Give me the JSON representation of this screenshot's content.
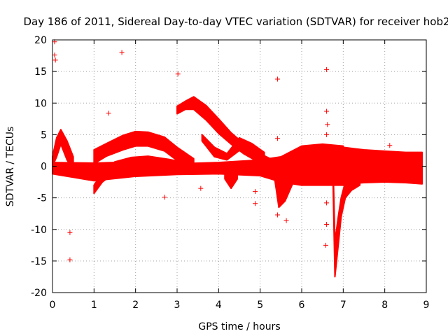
{
  "chart_data": {
    "type": "scatter",
    "title": "Day 186 of 2011, Sidereal Day-to-day VTEC variation (SDTVAR) for receiver hob2",
    "xlabel": "GPS time / hours",
    "ylabel": "SDTVAR / TECUs",
    "xlim": [
      0,
      9
    ],
    "ylim": [
      -20,
      20
    ],
    "xticks": [
      "0",
      "1",
      "2",
      "3",
      "4",
      "5",
      "6",
      "7",
      "8",
      "9"
    ],
    "yticks": [
      "20",
      "15",
      "10",
      "5",
      "0",
      "-5",
      "-10",
      "-15",
      "-20"
    ],
    "grid": true,
    "marker": "+",
    "color": "#ff0000",
    "bands": [
      {
        "name": "main band 0-7h",
        "x": [
          0.0,
          1.0,
          2.0,
          3.0,
          4.0,
          5.0,
          5.5,
          6.0,
          6.5,
          7.0
        ],
        "lo": [
          -1.2,
          -2.3,
          -1.6,
          -1.3,
          -1.2,
          -1.5,
          -2.5,
          -3.0,
          -3.0,
          -3.0
        ],
        "hi": [
          0.6,
          0.5,
          0.7,
          0.4,
          0.6,
          1.0,
          1.5,
          3.2,
          3.5,
          3.2
        ]
      },
      {
        "name": "late band 7-9h",
        "x": [
          7.0,
          7.5,
          8.0,
          8.5,
          8.9
        ],
        "lo": [
          -2.8,
          -2.6,
          -2.5,
          -2.6,
          -2.8
        ],
        "hi": [
          3.0,
          2.6,
          2.4,
          2.2,
          2.2
        ]
      },
      {
        "name": "upper arc",
        "x": [
          1.0,
          1.3,
          1.7,
          2.0,
          2.3,
          2.7,
          3.0,
          3.4
        ],
        "lo": [
          0.4,
          1.6,
          2.6,
          3.2,
          3.2,
          2.4,
          0.9,
          0.0
        ],
        "hi": [
          2.6,
          3.6,
          4.9,
          5.5,
          5.4,
          4.6,
          3.0,
          1.2
        ]
      },
      {
        "name": "lower-left arc",
        "x": [
          1.0,
          1.2,
          1.5,
          1.9,
          2.3,
          2.8,
          3.2
        ],
        "lo": [
          -4.3,
          -2.5,
          -1.0,
          0.0,
          0.4,
          0.3,
          0.0
        ],
        "hi": [
          -3.0,
          -1.0,
          0.7,
          1.4,
          1.6,
          1.1,
          0.6
        ]
      },
      {
        "name": "peak arc",
        "x": [
          3.0,
          3.2,
          3.4,
          3.7,
          4.0,
          4.3,
          4.6,
          5.0,
          5.3,
          5.7
        ],
        "lo": [
          8.3,
          9.0,
          9.0,
          7.3,
          5.2,
          3.5,
          2.0,
          0.5,
          -0.4,
          -0.7
        ],
        "hi": [
          9.5,
          10.3,
          11.0,
          9.6,
          7.5,
          5.3,
          3.6,
          2.0,
          1.0,
          0.3
        ]
      },
      {
        "name": "early bump",
        "x": [
          0.0,
          0.1,
          0.2,
          0.35,
          0.5
        ],
        "lo": [
          0.0,
          1.5,
          3.5,
          1.0,
          -0.5
        ],
        "hi": [
          1.5,
          4.5,
          5.8,
          4.0,
          1.5
        ]
      },
      {
        "name": "second arc",
        "x": [
          3.6,
          3.9,
          4.2,
          4.5,
          4.8,
          5.1
        ],
        "lo": [
          4.0,
          1.5,
          1.0,
          2.5,
          2.0,
          1.0
        ],
        "hi": [
          5.0,
          3.0,
          2.0,
          4.5,
          3.6,
          2.2
        ]
      },
      {
        "name": "dip 5.5h",
        "x": [
          5.35,
          5.45,
          5.6,
          5.8
        ],
        "lo": [
          -2.0,
          -6.5,
          -5.5,
          -2.5
        ],
        "hi": [
          0.0,
          -2.0,
          -1.0,
          0.0
        ]
      },
      {
        "name": "plunge 7h",
        "x": [
          6.75,
          6.8,
          6.88,
          6.95,
          7.05,
          7.2,
          7.4
        ],
        "lo": [
          -1.0,
          -17.5,
          -12.5,
          -8.0,
          -5.0,
          -3.8,
          -3.0
        ],
        "hi": [
          2.0,
          -12.0,
          -8.0,
          -5.0,
          -2.5,
          -1.0,
          0.0
        ]
      },
      {
        "name": "dip 4.3h",
        "x": [
          4.15,
          4.3,
          4.45
        ],
        "lo": [
          -2.0,
          -3.5,
          -2.0
        ],
        "hi": [
          -0.5,
          -1.5,
          -0.5
        ]
      }
    ],
    "outliers": [
      {
        "x": 0.05,
        "y": 19.7
      },
      {
        "x": 0.05,
        "y": 17.6
      },
      {
        "x": 0.07,
        "y": 16.8
      },
      {
        "x": 1.67,
        "y": 18.0
      },
      {
        "x": 3.02,
        "y": 14.6
      },
      {
        "x": 5.42,
        "y": 13.8
      },
      {
        "x": 6.6,
        "y": 15.3
      },
      {
        "x": 1.35,
        "y": 8.4
      },
      {
        "x": 6.6,
        "y": 8.7
      },
      {
        "x": 8.12,
        "y": 3.3
      },
      {
        "x": 5.42,
        "y": 4.4
      },
      {
        "x": 3.57,
        "y": -3.5
      },
      {
        "x": 2.7,
        "y": -4.9
      },
      {
        "x": 4.88,
        "y": -4.0
      },
      {
        "x": 4.88,
        "y": -5.9
      },
      {
        "x": 5.42,
        "y": -7.7
      },
      {
        "x": 5.63,
        "y": -8.6
      },
      {
        "x": 0.42,
        "y": -10.5
      },
      {
        "x": 0.42,
        "y": -14.8
      },
      {
        "x": 6.58,
        "y": -12.5
      },
      {
        "x": 6.6,
        "y": -9.2
      },
      {
        "x": 6.6,
        "y": -5.8
      },
      {
        "x": 6.6,
        "y": 5.0
      },
      {
        "x": 6.62,
        "y": 6.6
      }
    ]
  }
}
